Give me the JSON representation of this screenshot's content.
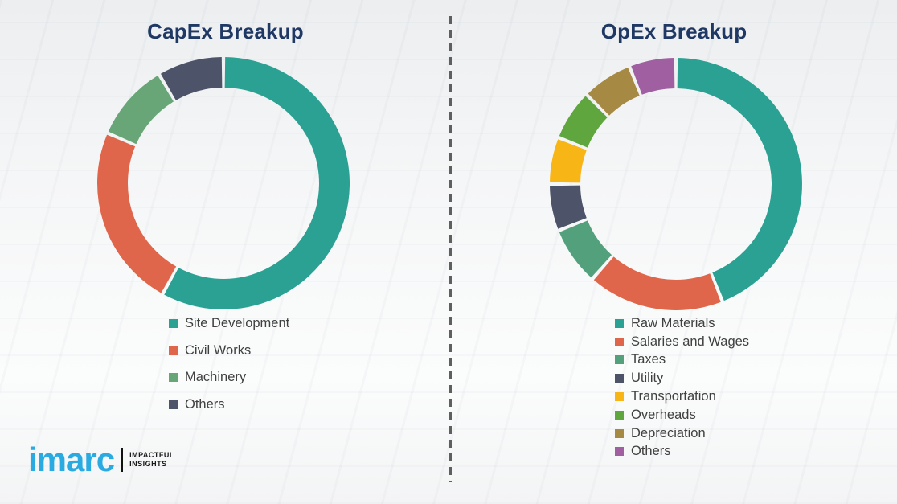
{
  "page": {
    "background_color": "#f6f7f8",
    "divider_color": "#5f5f5f"
  },
  "chart_data": [
    {
      "type": "donut",
      "title": "CapEx Breakup",
      "title_color": "#1f3864",
      "legend_position": "below-left-of-chart",
      "categories": [
        "Site Development",
        "Civil Works",
        "Machinery",
        "Others"
      ],
      "values": [
        58,
        23.5,
        10,
        8.5
      ],
      "colors": [
        "#2aa192",
        "#e0664b",
        "#68a678",
        "#4d5368"
      ],
      "units": "percent-of-ring",
      "start_angle_deg": 0,
      "direction": "clockwise"
    },
    {
      "type": "donut",
      "title": "OpEx Breakup",
      "title_color": "#1f3864",
      "legend_position": "below-left-of-chart",
      "categories": [
        "Raw Materials",
        "Salaries and Wages",
        "Taxes",
        "Utility",
        "Transportation",
        "Overheads",
        "Depreciation",
        "Others"
      ],
      "values": [
        44,
        17.5,
        7.5,
        6,
        6,
        6.5,
        6.5,
        6
      ],
      "colors": [
        "#2aa192",
        "#e0664b",
        "#53a07c",
        "#4d5368",
        "#f8b616",
        "#5fa63e",
        "#a68a44",
        "#9f5fa0"
      ],
      "units": "percent-of-ring",
      "start_angle_deg": 0,
      "direction": "clockwise"
    }
  ],
  "logo": {
    "brand": "imarc",
    "brand_color": "#29abe2",
    "tagline_line1": "IMPACTFUL",
    "tagline_line2": "INSIGHTS"
  }
}
